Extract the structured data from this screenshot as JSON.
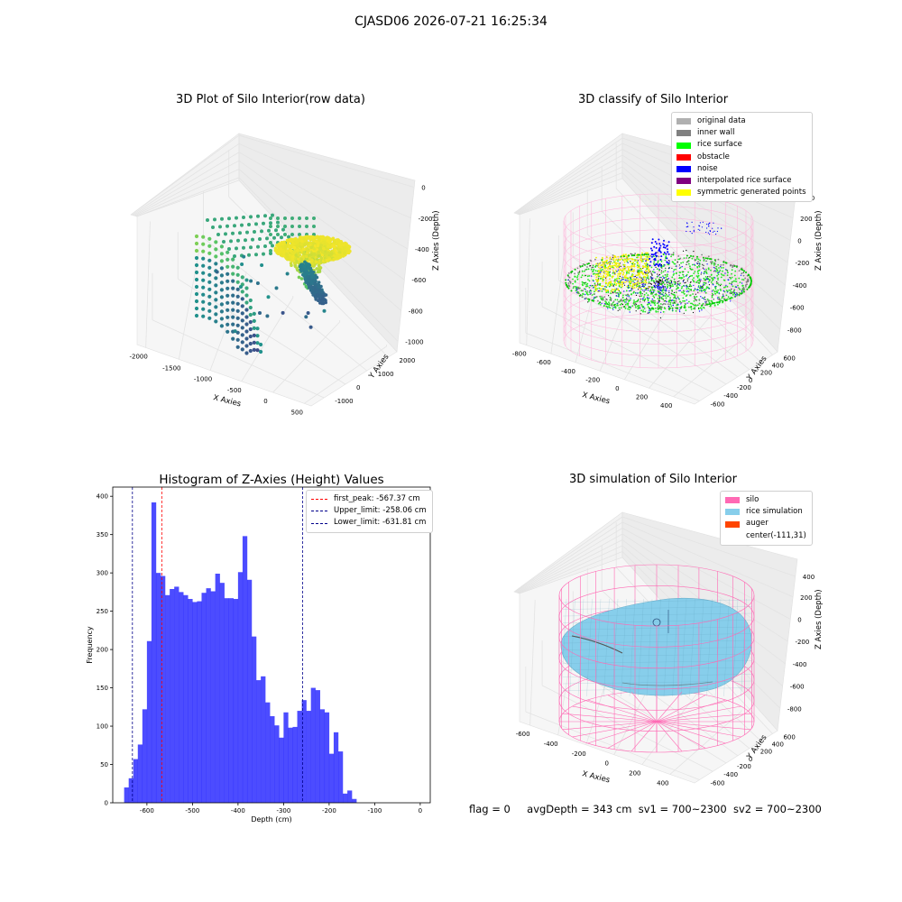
{
  "figure": {
    "suptitle": "CJASD06 2026-07-21 16:25:34",
    "footer": {
      "flag": "flag = 0",
      "avg_depth": "avgDepth = 343 cm",
      "sv1": "sv1 = 700~2300",
      "sv2": "sv2 = 700~2300"
    },
    "colors": {
      "histogram": "#0000ff",
      "silo": "#ff69b4",
      "rice_simulation": "#87ceeb",
      "auger": "#ff4500",
      "first_peak": "#ff0000",
      "limits": "#00008b"
    }
  },
  "chart_data": [
    {
      "type": "scatter",
      "projection": "3d",
      "title": "3D Plot of Silo Interior(row data)",
      "xlabel": "X Axies",
      "ylabel": "Y Axies",
      "zlabel": "Z Axies (Depth)",
      "x_ticks": [
        "-2000",
        "-1500",
        "-1000",
        "-500",
        "0",
        "500"
      ],
      "y_ticks": [
        "-1000",
        "0",
        "1000",
        "2000"
      ],
      "z_ticks": [
        "0",
        "-200",
        "-400",
        "-600",
        "-800",
        "-1000"
      ],
      "xlim": [
        -2300,
        600
      ],
      "ylim": [
        -1600,
        2600
      ],
      "zlim": [
        -1050,
        50
      ],
      "colormap": "viridis",
      "grid": true
    },
    {
      "type": "scatter",
      "projection": "3d",
      "title": "3D classify of Silo Interior",
      "xlabel": "X Axies",
      "ylabel": "Y Axies",
      "zlabel": "Z Axies (Depth)",
      "x_ticks": [
        "-800",
        "-600",
        "-400",
        "-200",
        "0",
        "200",
        "400"
      ],
      "y_ticks": [
        "-600",
        "-400",
        "-200",
        "0",
        "200",
        "400",
        "600"
      ],
      "z_ticks": [
        "400",
        "200",
        "0",
        "-200",
        "-400",
        "-600",
        "-800"
      ],
      "xlim": [
        -850,
        550
      ],
      "ylim": [
        -650,
        650
      ],
      "zlim": [
        -900,
        450
      ],
      "legend_position": "upper right",
      "legend": [
        {
          "label": "original data",
          "color": "#b0b0b0"
        },
        {
          "label": "inner wall",
          "color": "#808080"
        },
        {
          "label": "rice surface",
          "color": "#00ff00"
        },
        {
          "label": "obstacle",
          "color": "#ff0000"
        },
        {
          "label": "noise",
          "color": "#0000ff"
        },
        {
          "label": "interpolated rice surface",
          "color": "#800080"
        },
        {
          "label": "symmetric generated points",
          "color": "#ffff00"
        }
      ],
      "grid": true
    },
    {
      "type": "bar",
      "title": "Histogram of Z-Axies (Height) Values",
      "xlabel": "Depth (cm)",
      "ylabel": "Frequency",
      "x_ticks": [
        -600,
        -500,
        -400,
        -300,
        -200,
        -100,
        0
      ],
      "y_ticks": [
        0,
        50,
        100,
        150,
        200,
        250,
        300,
        350,
        400
      ],
      "xlim": [
        -675,
        22
      ],
      "ylim": [
        0,
        412
      ],
      "bin_start": -650,
      "bin_width": 10,
      "values": [
        20,
        32,
        57,
        76,
        122,
        211,
        392,
        300,
        296,
        271,
        279,
        282,
        275,
        271,
        266,
        262,
        263,
        274,
        280,
        276,
        299,
        287,
        267,
        267,
        266,
        301,
        348,
        291,
        217,
        160,
        165,
        131,
        113,
        101,
        85,
        118,
        98,
        99,
        120,
        134,
        120,
        150,
        147,
        122,
        118,
        64,
        92,
        67,
        12,
        16,
        5
      ],
      "lines": [
        {
          "label": "first_peak: -567.37 cm",
          "x": -567.37,
          "color": "#ff0000"
        },
        {
          "label": "Upper_limit: -258.06 cm",
          "x": -258.06,
          "color": "#00008b"
        },
        {
          "label": "Lower_limit: -631.81 cm",
          "x": -631.81,
          "color": "#00008b"
        }
      ],
      "legend_position": "upper right",
      "grid": false
    },
    {
      "type": "surface",
      "projection": "3d",
      "title": "3D simulation of Silo Interior",
      "xlabel": "X Axies",
      "ylabel": "Y Axies",
      "zlabel": "Z Axies (Depth)",
      "x_ticks": [
        "-600",
        "-400",
        "-200",
        "0",
        "200",
        "400"
      ],
      "y_ticks": [
        "-600",
        "-400",
        "-200",
        "0",
        "200",
        "400",
        "600"
      ],
      "z_ticks": [
        "400",
        "200",
        "0",
        "-200",
        "-400",
        "-600",
        "-800"
      ],
      "xlim": [
        -750,
        550
      ],
      "ylim": [
        -650,
        650
      ],
      "zlim": [
        -900,
        450
      ],
      "legend_position": "upper right",
      "legend": [
        {
          "label": "silo",
          "color": "#ff69b4"
        },
        {
          "label": "rice simulation",
          "color": "#87ceeb"
        },
        {
          "label": "auger",
          "color": "#ff4500"
        },
        {
          "label": "center(-111,31)",
          "color": ""
        }
      ],
      "grid": true
    }
  ]
}
